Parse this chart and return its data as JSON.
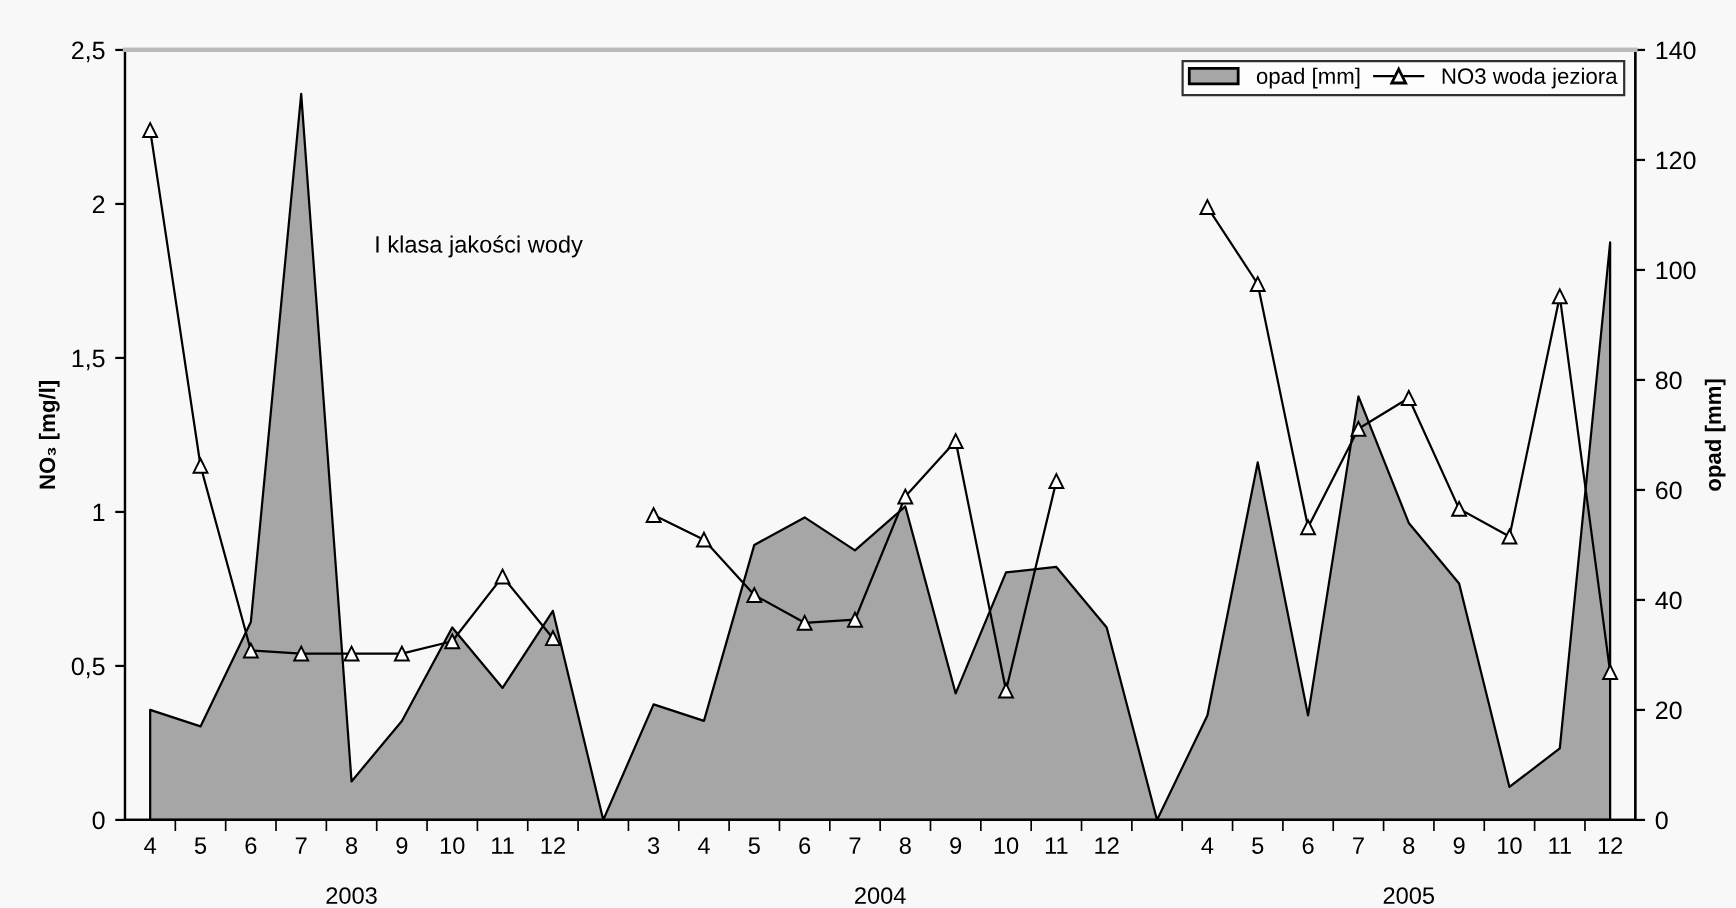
{
  "chart_data": {
    "type": "area",
    "ylabel": "NO₃ [mg/l]",
    "y2label": "opad [mm]",
    "categories": [
      "4",
      "5",
      "6",
      "7",
      "8",
      "9",
      "10",
      "11",
      "12",
      null,
      "3",
      "4",
      "5",
      "6",
      "7",
      "8",
      "9",
      "10",
      "11",
      "12",
      null,
      "4",
      "5",
      "6",
      "7",
      "8",
      "9",
      "10",
      "11",
      "12"
    ],
    "series": [
      {
        "name": "opad [mm]",
        "axis": "y2",
        "color": "#a6a6a6",
        "values": [
          20,
          17,
          36,
          132,
          7,
          18,
          35,
          24,
          38,
          0,
          21,
          18,
          50,
          55,
          49,
          57,
          23,
          45,
          46,
          35,
          0,
          19,
          65,
          19,
          77,
          54,
          43,
          6,
          13,
          105
        ]
      },
      {
        "name": "NO3 woda jeziora",
        "type": "line",
        "color": "#000000",
        "marker": "triangle",
        "values": [
          2.24,
          1.15,
          0.55,
          0.54,
          0.54,
          0.54,
          0.58,
          0.79,
          0.59,
          null,
          0.99,
          0.91,
          0.73,
          0.64,
          0.65,
          1.05,
          1.23,
          0.42,
          1.1,
          null,
          null,
          1.99,
          1.74,
          0.95,
          1.27,
          1.37,
          1.01,
          0.92,
          1.7,
          0.48
        ]
      }
    ],
    "ylim": [
      0,
      2.5
    ],
    "yticks": [
      0,
      {
        "value": 0.5,
        "label": "0,5"
      },
      1,
      {
        "value": 1.5,
        "label": "1,5"
      },
      2,
      {
        "value": 2.5,
        "label": "2,5"
      }
    ],
    "y2lim": [
      0,
      140
    ],
    "y2ticks": [
      0,
      20,
      40,
      60,
      80,
      100,
      120,
      140
    ],
    "grid": false,
    "legend": "top right",
    "annotations": [
      "I klasa jakości wody",
      "2003",
      "2004",
      "2005"
    ]
  }
}
